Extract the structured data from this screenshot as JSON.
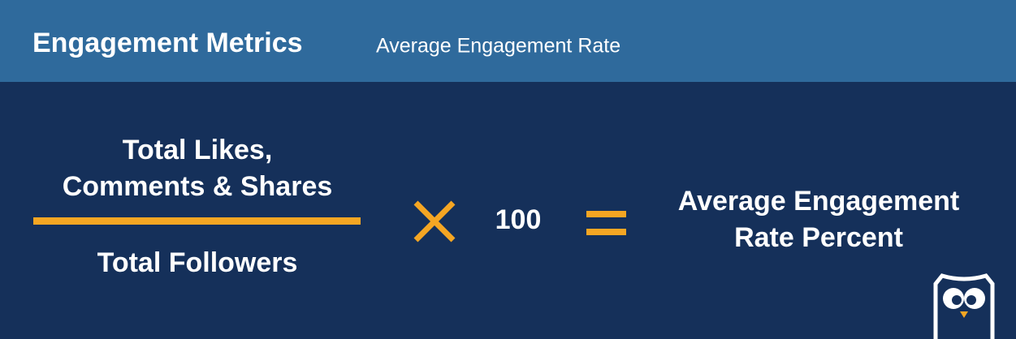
{
  "header": {
    "title": "Engagement Metrics",
    "subtitle": "Average Engagement Rate"
  },
  "formula": {
    "numerator": [
      "Total Likes,",
      "Comments & Shares"
    ],
    "denominator": "Total Followers",
    "multiplier": 100,
    "result": [
      "Average Engagement",
      "Rate Percent"
    ]
  }
}
